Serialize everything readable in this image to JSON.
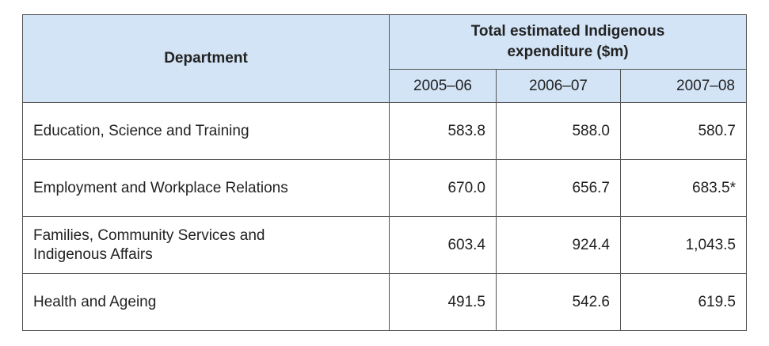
{
  "table": {
    "header": {
      "department": "Department",
      "group": "Total estimated Indigenous expenditure ($m)",
      "years": [
        "2005–06",
        "2006–07",
        "2007–08"
      ]
    },
    "rows": [
      {
        "department": "Education, Science and Training",
        "values": [
          "583.8",
          "588.0",
          "580.7"
        ]
      },
      {
        "department": "Employment and Workplace Relations",
        "values": [
          "670.0",
          "656.7",
          "683.5*"
        ]
      },
      {
        "department": "Families, Community Services and Indigenous Affairs",
        "values": [
          "603.4",
          "924.4",
          "1,043.5"
        ]
      },
      {
        "department": "Health and Ageing",
        "values": [
          "491.5",
          "542.6",
          "619.5"
        ]
      }
    ]
  }
}
